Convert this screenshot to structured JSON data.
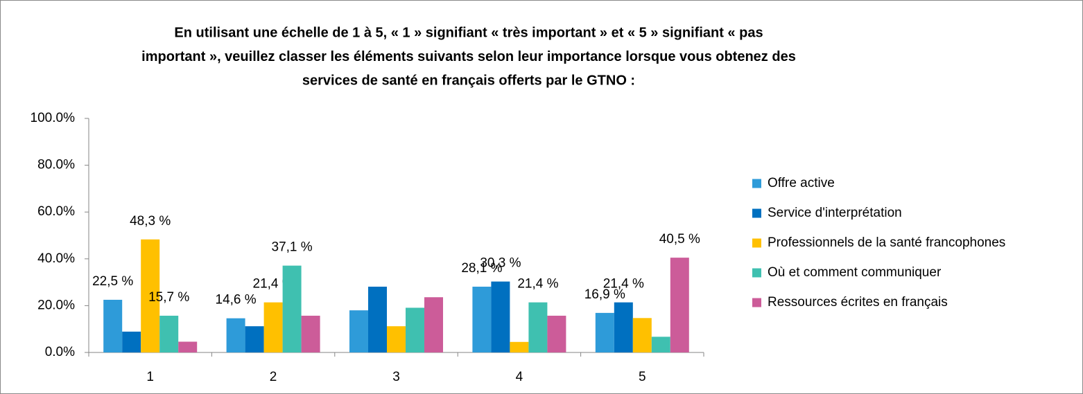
{
  "chart_data": {
    "type": "bar",
    "title": [
      "En utilisant une échelle de 1 à 5, « 1 » signifiant « très important » et « 5 » signifiant « pas",
      "important », veuillez classer les éléments suivants selon leur importance lorsque vous obtenez des",
      "services de santé en français offerts par le GTNO :"
    ],
    "categories": [
      "1",
      "2",
      "3",
      "4",
      "5"
    ],
    "series": [
      {
        "name": "Offre active",
        "color": "#2e9bd9",
        "values": [
          22.5,
          14.6,
          18.0,
          28.1,
          16.9
        ],
        "value_labels": [
          "22,5 %",
          "14,6 %",
          null,
          "28,1 %",
          "16,9 %"
        ]
      },
      {
        "name": "Service d'interprétation",
        "color": "#0070c0",
        "values": [
          8.9,
          11.2,
          28.1,
          30.3,
          21.4
        ],
        "value_labels": [
          null,
          null,
          null,
          "30,3 %",
          "21,4 %"
        ]
      },
      {
        "name": "Professionnels de la santé francophones",
        "color": "#ffc000",
        "values": [
          48.3,
          21.4,
          11.2,
          4.5,
          14.7
        ],
        "value_labels": [
          "48,3 %",
          "21,4 %",
          null,
          null,
          null
        ]
      },
      {
        "name": "Où et comment communiquer",
        "color": "#3fc0b0",
        "values": [
          15.7,
          37.1,
          19.1,
          21.4,
          6.7
        ],
        "value_labels": [
          "15,7 %",
          "37,1 %",
          null,
          "21,4 %",
          null
        ]
      },
      {
        "name": "Ressources écrites en français",
        "color": "#cc5c99",
        "values": [
          4.6,
          15.7,
          23.6,
          15.7,
          40.5
        ],
        "value_labels": [
          null,
          null,
          null,
          null,
          "40,5 %"
        ]
      }
    ],
    "ylim": [
      0,
      100
    ],
    "yticks": [
      {
        "value": 0,
        "label": "0.0%"
      },
      {
        "value": 20,
        "label": "20.0%"
      },
      {
        "value": 40,
        "label": "40.0%"
      },
      {
        "value": 60,
        "label": "60.0%"
      },
      {
        "value": 80,
        "label": "80.0%"
      },
      {
        "value": 100,
        "label": "100.0%"
      }
    ],
    "grid": false,
    "legend": "right"
  }
}
